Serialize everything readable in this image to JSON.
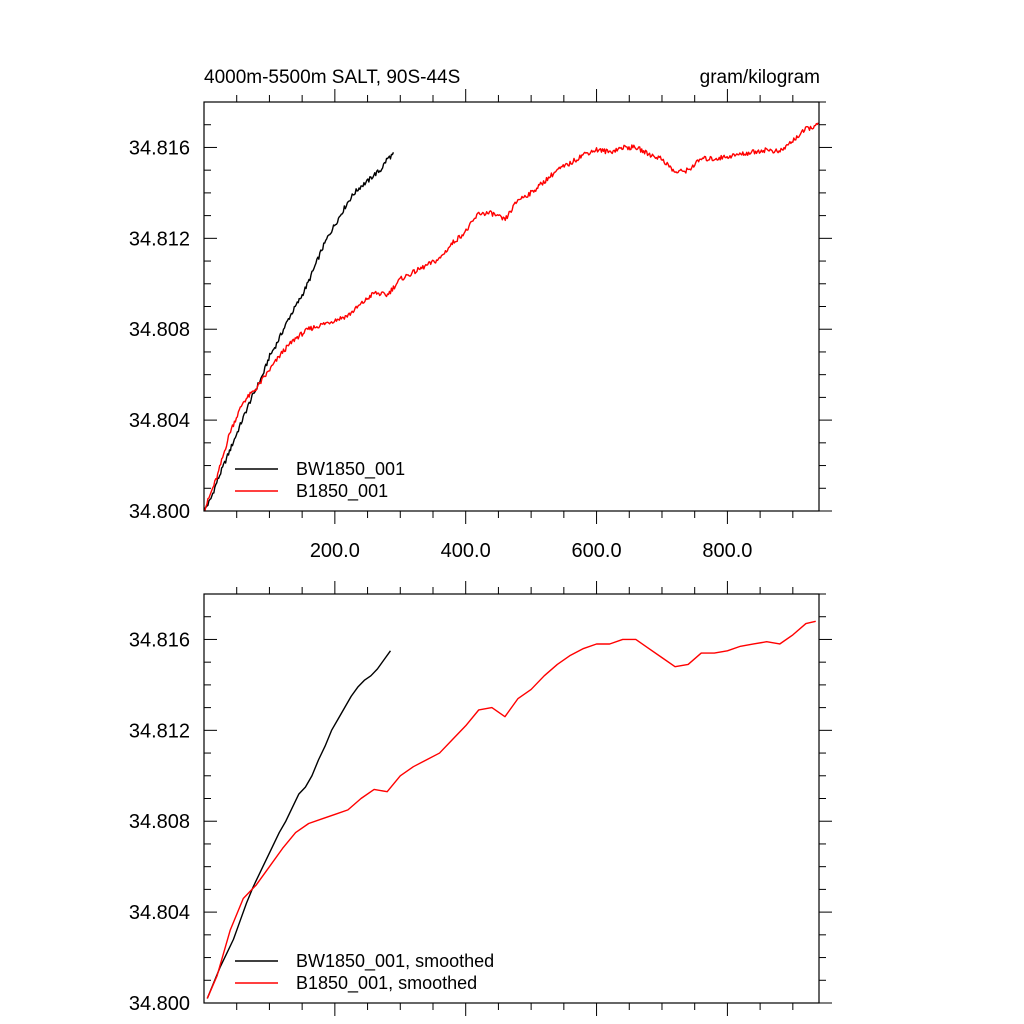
{
  "chart_data": [
    {
      "type": "line",
      "title": "4000m-5500m SALT, 90S-44S",
      "units": "gram/kilogram",
      "xlim": [
        0,
        940
      ],
      "ylim": [
        34.8,
        34.818
      ],
      "xticks": [
        200,
        400,
        600,
        800
      ],
      "xtick_labels": [
        "200.0",
        "400.0",
        "600.0",
        "800.0"
      ],
      "yticks": [
        34.8,
        34.804,
        34.808,
        34.812,
        34.816
      ],
      "ytick_labels": [
        "34.800",
        "34.804",
        "34.808",
        "34.812",
        "34.816"
      ],
      "grid": false,
      "legend_position": "bottom-left",
      "series": [
        {
          "name": "BW1850_001",
          "color": "#000000",
          "x": [
            0,
            10,
            20,
            30,
            40,
            50,
            60,
            70,
            80,
            90,
            100,
            110,
            120,
            130,
            140,
            150,
            160,
            170,
            180,
            190,
            200,
            210,
            220,
            230,
            240,
            250,
            260,
            270,
            280,
            290
          ],
          "y": [
            34.8,
            34.8005,
            34.8013,
            34.802,
            34.8027,
            34.8034,
            34.8041,
            34.8048,
            34.8054,
            34.806,
            34.8068,
            34.8073,
            34.8079,
            34.8085,
            34.809,
            34.8095,
            34.8101,
            34.8108,
            34.8115,
            34.8121,
            34.8126,
            34.8131,
            34.8136,
            34.814,
            34.8143,
            34.8145,
            34.8148,
            34.815,
            34.8155,
            34.8157
          ]
        },
        {
          "name": "B1850_001",
          "color": "#ff0000",
          "x": [
            0,
            20,
            40,
            60,
            80,
            100,
            120,
            140,
            160,
            180,
            200,
            220,
            240,
            260,
            280,
            300,
            320,
            340,
            360,
            380,
            400,
            420,
            440,
            460,
            480,
            500,
            520,
            540,
            560,
            580,
            600,
            620,
            640,
            660,
            680,
            700,
            720,
            740,
            760,
            780,
            800,
            820,
            840,
            860,
            880,
            900,
            920,
            940
          ],
          "y": [
            34.8,
            34.8015,
            34.8035,
            34.8048,
            34.8054,
            34.8062,
            34.807,
            34.8076,
            34.808,
            34.8082,
            34.8084,
            34.8086,
            34.8091,
            34.8096,
            34.8095,
            34.8102,
            34.8105,
            34.8108,
            34.8111,
            34.8118,
            34.8123,
            34.8131,
            34.8131,
            34.8128,
            34.8137,
            34.814,
            34.8145,
            34.815,
            34.8153,
            34.8157,
            34.8159,
            34.8158,
            34.816,
            34.816,
            34.8157,
            34.8155,
            34.8149,
            34.815,
            34.8155,
            34.8155,
            34.8156,
            34.8157,
            34.8158,
            34.8159,
            34.8158,
            34.8163,
            34.8168,
            34.817
          ]
        }
      ]
    },
    {
      "type": "line",
      "title": "",
      "xlim": [
        0,
        940
      ],
      "ylim": [
        34.8,
        34.818
      ],
      "xticks": [
        200,
        400,
        600,
        800
      ],
      "yticks": [
        34.8,
        34.804,
        34.808,
        34.812,
        34.816
      ],
      "ytick_labels": [
        "34.800",
        "34.804",
        "34.808",
        "34.812",
        "34.816"
      ],
      "grid": false,
      "legend_position": "bottom-left",
      "series": [
        {
          "name": "BW1850_001, smoothed",
          "color": "#000000",
          "x": [
            5,
            15,
            25,
            35,
            45,
            55,
            65,
            75,
            85,
            95,
            105,
            115,
            125,
            135,
            145,
            155,
            165,
            175,
            185,
            195,
            205,
            215,
            225,
            235,
            245,
            255,
            265,
            275,
            285
          ],
          "y": [
            34.8002,
            34.8009,
            34.8016,
            34.8022,
            34.8028,
            34.8036,
            34.8044,
            34.8051,
            34.8057,
            34.8063,
            34.8069,
            34.8075,
            34.808,
            34.8086,
            34.8092,
            34.8095,
            34.81,
            34.8107,
            34.8113,
            34.812,
            34.8125,
            34.813,
            34.8135,
            34.8139,
            34.8142,
            34.8144,
            34.8147,
            34.8151,
            34.8155
          ]
        },
        {
          "name": "B1850_001, smoothed",
          "color": "#ff0000",
          "x": [
            5,
            20,
            40,
            60,
            80,
            100,
            120,
            140,
            160,
            180,
            200,
            220,
            240,
            260,
            280,
            300,
            320,
            340,
            360,
            380,
            400,
            420,
            440,
            460,
            480,
            500,
            520,
            540,
            560,
            580,
            600,
            620,
            640,
            660,
            680,
            700,
            720,
            740,
            760,
            780,
            800,
            820,
            840,
            860,
            880,
            900,
            920,
            935
          ],
          "y": [
            34.8002,
            34.8012,
            34.8032,
            34.8046,
            34.8052,
            34.806,
            34.8068,
            34.8075,
            34.8079,
            34.8081,
            34.8083,
            34.8085,
            34.809,
            34.8094,
            34.8093,
            34.81,
            34.8104,
            34.8107,
            34.811,
            34.8116,
            34.8122,
            34.8129,
            34.813,
            34.8126,
            34.8134,
            34.8138,
            34.8144,
            34.8149,
            34.8153,
            34.8156,
            34.8158,
            34.8158,
            34.816,
            34.816,
            34.8156,
            34.8152,
            34.8148,
            34.8149,
            34.8154,
            34.8154,
            34.8155,
            34.8157,
            34.8158,
            34.8159,
            34.8158,
            34.8162,
            34.8167,
            34.8168
          ]
        }
      ]
    }
  ]
}
